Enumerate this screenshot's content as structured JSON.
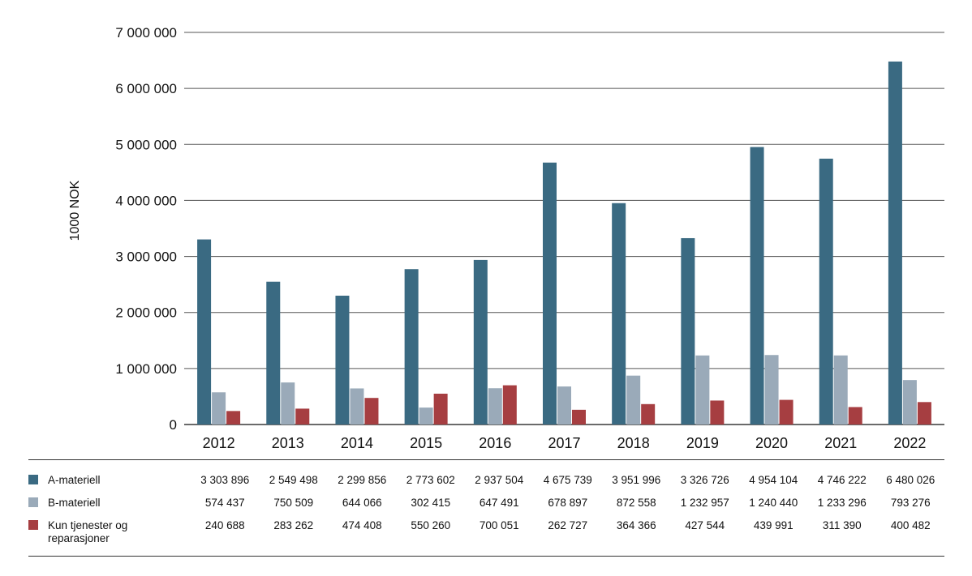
{
  "chart_data": {
    "type": "bar",
    "ylabel": "1000 NOK",
    "xlabel": "",
    "ylim": [
      0,
      7000000
    ],
    "yticks": [
      0,
      1000000,
      2000000,
      3000000,
      4000000,
      5000000,
      6000000,
      7000000
    ],
    "ytick_labels": [
      "0",
      "1 000 000",
      "2 000 000",
      "3 000 000",
      "4 000 000",
      "5 000 000",
      "6 000 000",
      "7 000 000"
    ],
    "grid": true,
    "legend_placement": "bottom table",
    "categories": [
      "2012",
      "2013",
      "2014",
      "2015",
      "2016",
      "2017",
      "2018",
      "2019",
      "2020",
      "2021",
      "2022"
    ],
    "series": [
      {
        "name": "A-materiell",
        "color": "#3a6a82",
        "values": [
          3303896,
          2549498,
          2299856,
          2773602,
          2937504,
          4675739,
          3951996,
          3326726,
          4954104,
          4746222,
          6480026
        ],
        "labels": [
          "3 303 896",
          "2 549 498",
          "2 299 856",
          "2 773 602",
          "2 937 504",
          "4 675 739",
          "3 951 996",
          "3 326 726",
          "4 954 104",
          "4 746 222",
          "6 480 026"
        ]
      },
      {
        "name": "B-materiell",
        "color": "#9aaab9",
        "values": [
          574437,
          750509,
          644066,
          302415,
          647491,
          678897,
          872558,
          1232957,
          1240440,
          1233296,
          793276
        ],
        "labels": [
          "574 437",
          "750 509",
          "644 066",
          "302 415",
          "647 491",
          "678 897",
          "872 558",
          "1 232 957",
          "1 240 440",
          "1 233 296",
          "793 276"
        ]
      },
      {
        "name": "Kun tjenester og reparasjoner",
        "color": "#a63e41",
        "values": [
          240688,
          283262,
          474408,
          550260,
          700051,
          262727,
          364366,
          427544,
          439991,
          311390,
          400482
        ],
        "labels": [
          "240 688",
          "283 262",
          "474 408",
          "550 260",
          "700 051",
          "262 727",
          "364 366",
          "427 544",
          "439 991",
          "311 390",
          "400 482"
        ]
      }
    ]
  }
}
